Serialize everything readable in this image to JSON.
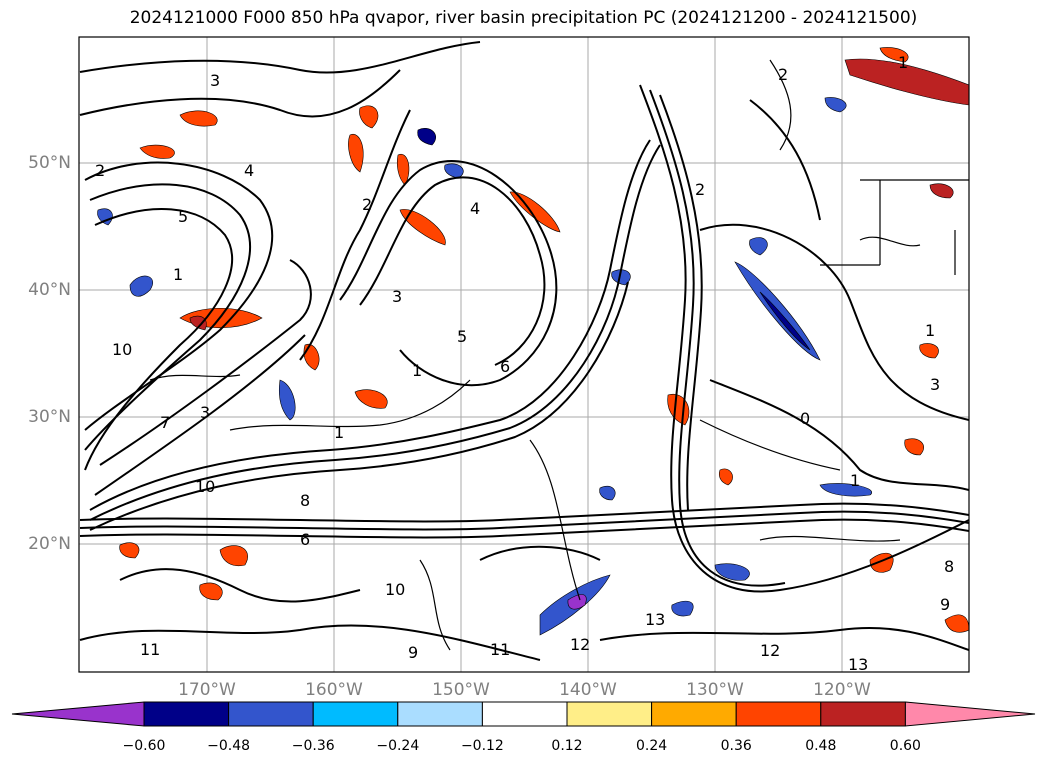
{
  "title": "2024121000 F000 850 hPa qvapor, river basin precipitation PC (2024121200 - 2024121500)",
  "lat_labels": [
    "50°N",
    "40°N",
    "30°N",
    "20°N"
  ],
  "lon_labels": [
    "170°W",
    "160°W",
    "150°W",
    "140°W",
    "130°W",
    "120°W"
  ],
  "colorbar": {
    "colors": [
      "#9933cc",
      "#000088",
      "#3355cc",
      "#00bbff",
      "#aaddff",
      "#ffffff",
      "#ffee88",
      "#ffaa00",
      "#ff4400",
      "#bb2222",
      "#ff88aa"
    ],
    "ticks": [
      "−0.60",
      "−0.48",
      "−0.36",
      "−0.24",
      "−0.12",
      "0.12",
      "0.24",
      "0.36",
      "0.48",
      "0.60"
    ]
  },
  "contour_labels": [
    "3",
    "4",
    "2",
    "5",
    "1",
    "10",
    "9",
    "8",
    "7",
    "6",
    "11",
    "12",
    "13",
    "0"
  ]
}
